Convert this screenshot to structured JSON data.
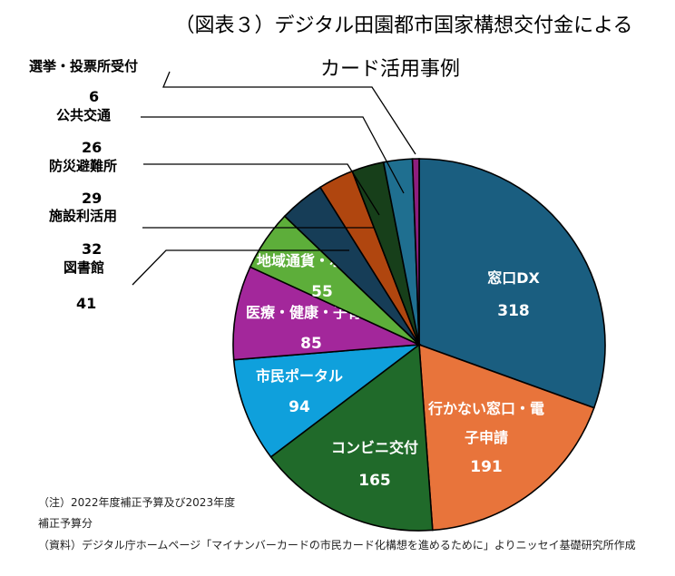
{
  "title_line1": "（図表３）デジタル田園都市国家構想交付金による",
  "title_line2": "カード活用事例",
  "notes": {
    "line1": "（注）2022年度補正予算及び2023年度",
    "line2": "補正予算分",
    "line3": "（資料）デジタル庁ホームページ「マイナンバーカードの市民カード化構想を進めるために」よりニッセイ基礎研究所作成"
  },
  "chart_data": {
    "type": "pie",
    "title": "（図表３）デジタル田園都市国家構想交付金による カード活用事例",
    "start": "12 o'clock, clockwise",
    "slices": [
      {
        "label": "窓口DX",
        "value": 318,
        "color": "#1A5E80",
        "label_lines": [
          "窓口DX"
        ],
        "label_placement": "inside"
      },
      {
        "label": "行かない窓口・電子申請",
        "value": 191,
        "color": "#E8743B",
        "label_lines": [
          "行かない窓口・電",
          "子申請"
        ],
        "label_placement": "inside"
      },
      {
        "label": "コンビニ交付",
        "value": 165,
        "color": "#206A2A",
        "label_lines": [
          "コンビニ交付"
        ],
        "label_placement": "inside"
      },
      {
        "label": "市民ポータル",
        "value": 94,
        "color": "#0FA0DC",
        "label_lines": [
          "市民ポータル"
        ],
        "label_placement": "inside"
      },
      {
        "label": "医療・健康・子育て",
        "value": 85,
        "color": "#A3279B",
        "label_lines": [
          "医療・健康・子育て"
        ],
        "label_placement": "inside"
      },
      {
        "label": "地域通貨・ポイント",
        "value": 55,
        "color": "#5DAE3A",
        "label_lines": [
          "地域通貨・ポイント"
        ],
        "label_placement": "inside"
      },
      {
        "label": "図書館",
        "value": 41,
        "color": "#163D57",
        "label_lines": [
          "図書館"
        ],
        "label_placement": "outside"
      },
      {
        "label": "施設利活用",
        "value": 32,
        "color": "#B0460F",
        "label_lines": [
          "施設利活用"
        ],
        "label_placement": "outside"
      },
      {
        "label": "防災避難所",
        "value": 29,
        "color": "#173F1A",
        "label_lines": [
          "防災避難所"
        ],
        "label_placement": "outside"
      },
      {
        "label": "公共交通",
        "value": 26,
        "color": "#1F6F90",
        "label_lines": [
          "公共交通"
        ],
        "label_placement": "outside"
      },
      {
        "label": "選挙・投票所受付",
        "value": 6,
        "color": "#8E1E7E",
        "label_lines": [
          "選挙・投票所受付"
        ],
        "label_placement": "outside"
      }
    ]
  }
}
